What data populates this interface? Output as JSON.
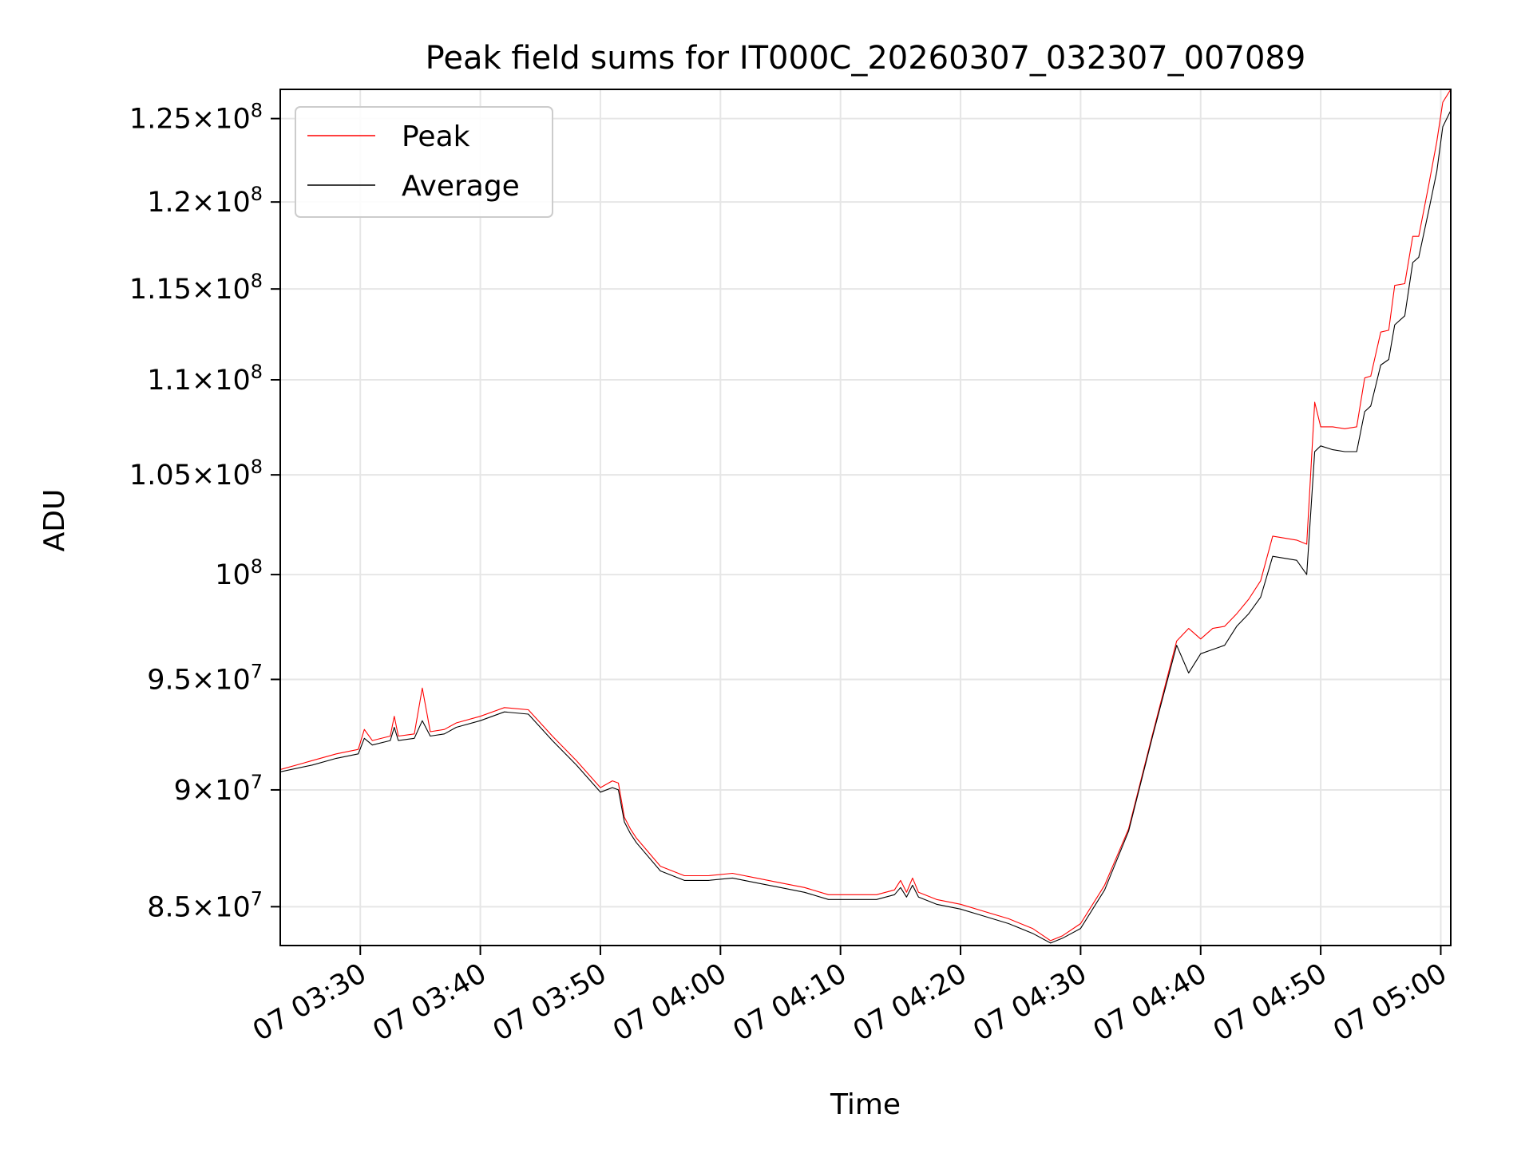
{
  "chart_data": {
    "type": "line",
    "title": "Peak field sums for IT000C_20260307_032307_007089",
    "xlabel": "Time",
    "ylabel": "ADU",
    "x_ticks": [
      "07 03:30",
      "07 03:40",
      "07 03:50",
      "07 04:00",
      "07 04:10",
      "07 04:20",
      "07 04:30",
      "07 04:40",
      "07 04:50",
      "07 05:00"
    ],
    "y_ticks": [
      {
        "value": 85000000,
        "mantissa": "8.5",
        "exponent": "7"
      },
      {
        "value": 90000000,
        "mantissa": "9",
        "exponent": "7"
      },
      {
        "value": 95000000,
        "mantissa": "9.5",
        "exponent": "7"
      },
      {
        "value": 100000000,
        "mantissa": "",
        "exponent": "8"
      },
      {
        "value": 105000000,
        "mantissa": "1.05",
        "exponent": "8"
      },
      {
        "value": 110000000,
        "mantissa": "1.1",
        "exponent": "8"
      },
      {
        "value": 115000000,
        "mantissa": "1.15",
        "exponent": "8"
      },
      {
        "value": 120000000,
        "mantissa": "1.2",
        "exponent": "8"
      },
      {
        "value": 125000000,
        "mantissa": "1.25",
        "exponent": "8"
      }
    ],
    "x_range": [
      "03:23:20",
      "05:00:50"
    ],
    "y_range": [
      83400000,
      126800000
    ],
    "y_scale": "log",
    "grid": true,
    "legend_position": "top-left",
    "series": [
      {
        "name": "Peak",
        "color": "#ff0000",
        "x": [
          "03:23:20",
          "03:26:00",
          "03:28:00",
          "03:29:50",
          "03:30:20",
          "03:31:00",
          "03:32:30",
          "03:32:50",
          "03:33:10",
          "03:34:30",
          "03:35:10",
          "03:35:50",
          "03:37:00",
          "03:38:00",
          "03:40:00",
          "03:42:00",
          "03:44:00",
          "03:46:00",
          "03:48:00",
          "03:50:00",
          "03:51:00",
          "03:51:30",
          "03:52:00",
          "03:52:30",
          "03:53:00",
          "03:55:00",
          "03:57:00",
          "03:59:00",
          "04:01:00",
          "04:03:00",
          "04:05:00",
          "04:07:00",
          "04:09:00",
          "04:11:00",
          "04:13:00",
          "04:14:30",
          "04:15:00",
          "04:15:30",
          "04:16:00",
          "04:16:30",
          "04:18:00",
          "04:20:00",
          "04:22:00",
          "04:24:00",
          "04:26:00",
          "04:27:30",
          "04:28:30",
          "04:30:00",
          "04:32:00",
          "04:34:00",
          "04:36:00",
          "04:38:00",
          "04:39:00",
          "04:40:00",
          "04:41:00",
          "04:42:00",
          "04:43:00",
          "04:44:00",
          "04:45:00",
          "04:46:00",
          "04:47:00",
          "04:48:00",
          "04:48:50",
          "04:49:30",
          "04:50:00",
          "04:51:00",
          "04:52:00",
          "04:53:00",
          "04:53:40",
          "04:54:10",
          "04:55:00",
          "04:55:40",
          "04:56:10",
          "04:57:00",
          "04:57:40",
          "04:58:10",
          "04:59:00",
          "04:59:40",
          "05:00:10",
          "05:00:50"
        ],
        "values": [
          90900000,
          91300000,
          91600000,
          91800000,
          92700000,
          92200000,
          92400000,
          93300000,
          92400000,
          92500000,
          94600000,
          92600000,
          92700000,
          93000000,
          93300000,
          93700000,
          93600000,
          92400000,
          91300000,
          90100000,
          90400000,
          90300000,
          88800000,
          88300000,
          87900000,
          86700000,
          86300000,
          86300000,
          86400000,
          86200000,
          86000000,
          85800000,
          85500000,
          85500000,
          85500000,
          85700000,
          86100000,
          85600000,
          86200000,
          85600000,
          85300000,
          85100000,
          84800000,
          84500000,
          84100000,
          83600000,
          83800000,
          84300000,
          85900000,
          88300000,
          92500000,
          96800000,
          97400000,
          96900000,
          97400000,
          97500000,
          98100000,
          98800000,
          99700000,
          101900000,
          101800000,
          101700000,
          101500000,
          108800000,
          107500000,
          107500000,
          107400000,
          107500000,
          110100000,
          110200000,
          112600000,
          112700000,
          115200000,
          115300000,
          118000000,
          118000000,
          121000000,
          123600000,
          126000000,
          126800000
        ],
        "line_width": 1.1
      },
      {
        "name": "Average",
        "color": "#000000",
        "x": [
          "03:23:20",
          "03:26:00",
          "03:28:00",
          "03:29:50",
          "03:30:20",
          "03:31:00",
          "03:32:30",
          "03:32:50",
          "03:33:10",
          "03:34:30",
          "03:35:10",
          "03:35:50",
          "03:37:00",
          "03:38:00",
          "03:40:00",
          "03:42:00",
          "03:44:00",
          "03:46:00",
          "03:48:00",
          "03:50:00",
          "03:51:00",
          "03:51:30",
          "03:52:00",
          "03:52:30",
          "03:53:00",
          "03:55:00",
          "03:57:00",
          "03:59:00",
          "04:01:00",
          "04:03:00",
          "04:05:00",
          "04:07:00",
          "04:09:00",
          "04:11:00",
          "04:13:00",
          "04:14:30",
          "04:15:00",
          "04:15:30",
          "04:16:00",
          "04:16:30",
          "04:18:00",
          "04:20:00",
          "04:22:00",
          "04:24:00",
          "04:26:00",
          "04:27:30",
          "04:28:30",
          "04:30:00",
          "04:32:00",
          "04:34:00",
          "04:36:00",
          "04:38:00",
          "04:39:00",
          "04:40:00",
          "04:41:00",
          "04:42:00",
          "04:43:00",
          "04:44:00",
          "04:45:00",
          "04:46:00",
          "04:47:00",
          "04:48:00",
          "04:48:50",
          "04:49:30",
          "04:50:00",
          "04:51:00",
          "04:52:00",
          "04:53:00",
          "04:53:40",
          "04:54:10",
          "04:55:00",
          "04:55:40",
          "04:56:10",
          "04:57:00",
          "04:57:40",
          "04:58:10",
          "04:59:00",
          "04:59:40",
          "05:00:10",
          "05:00:50"
        ],
        "values": [
          90800000,
          91100000,
          91400000,
          91600000,
          92300000,
          92000000,
          92200000,
          92800000,
          92200000,
          92300000,
          93100000,
          92400000,
          92500000,
          92800000,
          93100000,
          93500000,
          93400000,
          92200000,
          91100000,
          89900000,
          90100000,
          90000000,
          88600000,
          88100000,
          87700000,
          86500000,
          86100000,
          86100000,
          86200000,
          86000000,
          85800000,
          85600000,
          85300000,
          85300000,
          85300000,
          85500000,
          85800000,
          85400000,
          85900000,
          85400000,
          85100000,
          84900000,
          84600000,
          84300000,
          83900000,
          83500000,
          83700000,
          84100000,
          85700000,
          88200000,
          92400000,
          96600000,
          95300000,
          96200000,
          96400000,
          96600000,
          97500000,
          98100000,
          98900000,
          100900000,
          100800000,
          100700000,
          100000000,
          106200000,
          106500000,
          106300000,
          106200000,
          106200000,
          108300000,
          108600000,
          110800000,
          111100000,
          113000000,
          113500000,
          116500000,
          116800000,
          119500000,
          121800000,
          124500000,
          125500000
        ],
        "line_width": 1.1
      }
    ]
  }
}
